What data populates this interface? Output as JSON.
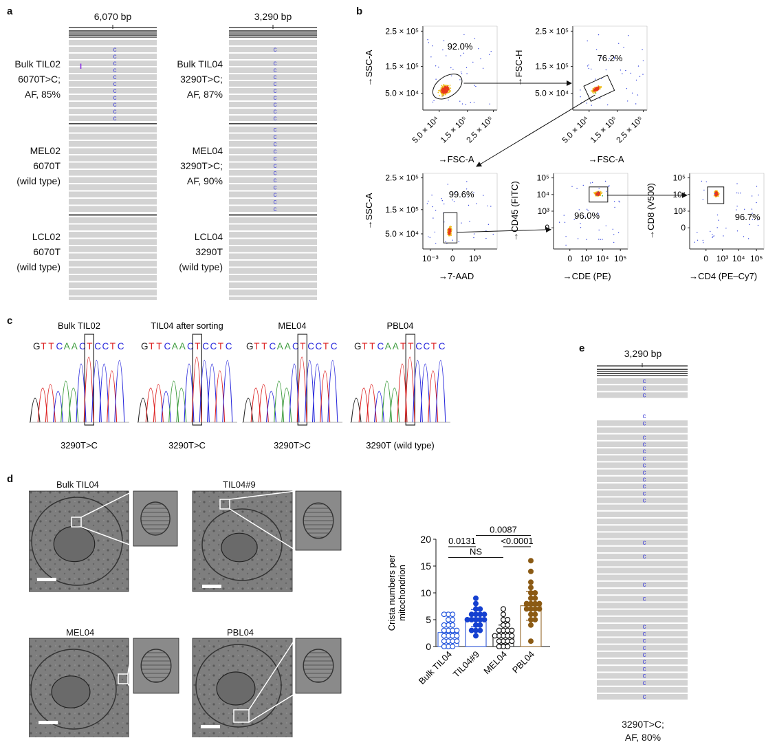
{
  "panel_letters": {
    "a": "a",
    "b": "b",
    "c": "c",
    "d": "d",
    "e": "e"
  },
  "panel_a": {
    "tracks": [
      {
        "position": "6,070 bp",
        "samples": [
          {
            "lines": [
              "Bulk TIL02",
              "6070T>C;",
              "AF, 85%"
            ]
          },
          {
            "lines": [
              "MEL02",
              "6070T",
              "(wild type)"
            ]
          },
          {
            "lines": [
              "LCL02",
              "6070T",
              "(wild type)"
            ]
          }
        ]
      },
      {
        "position": "3,290 bp",
        "samples": [
          {
            "lines": [
              "Bulk TIL04",
              "3290T>C;",
              "AF, 87%"
            ]
          },
          {
            "lines": [
              "MEL04",
              "3290T>C;",
              "AF, 90%"
            ]
          },
          {
            "lines": [
              "LCL04",
              "3290T",
              "(wild type)"
            ]
          }
        ]
      }
    ],
    "base_letter": "C",
    "insertion_mark": "I",
    "colors": {
      "read": "#d3d3d3",
      "variant": "#4a4ad8",
      "insertion": "#8a2be2"
    }
  },
  "panel_b": {
    "plots": [
      {
        "percent": "92.0%",
        "x_label": "→FSC-A",
        "y_label": "→SSC-A",
        "y_ticks": [
          "2.5 × 10⁵",
          "1.5 × 10⁵",
          "5.0 × 10⁴"
        ],
        "x_ticks": [
          "5.0 × 10⁴",
          "1.5 × 10⁵",
          "2.5 × 10⁵"
        ]
      },
      {
        "percent": "76.2%",
        "x_label": "→FSC-A",
        "y_label": "→FSC-H",
        "y_ticks": [
          "2.5 × 10⁵",
          "1.5 × 10⁵",
          "5.0 × 10⁴"
        ],
        "x_ticks": [
          "5.0 × 10⁴",
          "1.5 × 10⁵",
          "2.5 × 10⁵"
        ]
      },
      {
        "percent": "99.6%",
        "x_label": "→7-AAD",
        "y_label": "→SSC-A",
        "y_ticks": [
          "2.5 × 10⁵",
          "1.5 × 10⁵",
          "5.0 × 10⁴"
        ],
        "x_ticks": [
          "10⁻³",
          "0",
          "10³"
        ]
      },
      {
        "percent": "96.0%",
        "x_label": "→CDE (PE)",
        "y_label": "→CD45 (FITC)",
        "y_ticks": [
          "10⁵",
          "10⁴",
          "10³",
          "0"
        ],
        "x_ticks": [
          "0",
          "10³",
          "10⁴",
          "10⁵"
        ]
      },
      {
        "percent": "96.7%",
        "x_label": "→CD4 (PE–Cy7)",
        "y_label": "→CD8 (V500)",
        "y_ticks": [
          "10⁵",
          "10⁴",
          "10³",
          "0"
        ],
        "x_ticks": [
          "0",
          "10³",
          "10⁴",
          "10⁵"
        ]
      }
    ]
  },
  "panel_c": {
    "traces": [
      {
        "title": "Bulk TIL02",
        "seq": "GTTCAACTCCTC",
        "label": "3290T>C"
      },
      {
        "title": "TIL04 after sorting",
        "seq": "GTTCAACTCCTC",
        "label": "3290T>C"
      },
      {
        "title": "MEL04",
        "seq": "GTTCAACTCCTC",
        "label": "3290T>C"
      },
      {
        "title": "PBL04",
        "seq": "GTTCAATTCCTC",
        "label": "3290T (wild type)"
      }
    ],
    "base_colors": {
      "A": "#3a9a3a",
      "C": "#2a2adc",
      "G": "#222222",
      "T": "#dd2222"
    }
  },
  "panel_d": {
    "images": [
      {
        "title": "Bulk TIL04"
      },
      {
        "title": "TIL04#9"
      },
      {
        "title": "MEL04"
      },
      {
        "title": "PBL04"
      }
    ],
    "comparisons": [
      "0.0131",
      "0.0087",
      "<0.0001",
      "NS"
    ]
  },
  "chart_data": {
    "type": "bar",
    "ylabel": "Crista numbers per mitochondrion",
    "ylim": [
      0,
      20
    ],
    "yticks": [
      0,
      5,
      10,
      15,
      20
    ],
    "categories": [
      "Bulk TIL04",
      "TIL04#9",
      "MEL04",
      "PBL04"
    ],
    "values": [
      2.6,
      5.3,
      2.2,
      7.6
    ],
    "sd": [
      1.7,
      1.6,
      1.8,
      2.7
    ],
    "colors": [
      "#2255dd",
      "#1540d0",
      "#111111",
      "#8b5a14"
    ],
    "points": [
      [
        0,
        0,
        0,
        1,
        1,
        1,
        1,
        2,
        2,
        2,
        2,
        3,
        3,
        3,
        3,
        4,
        4,
        4,
        5,
        5,
        6,
        6,
        6
      ],
      [
        2,
        3,
        3,
        3,
        4,
        4,
        5,
        5,
        5,
        5,
        5,
        6,
        6,
        6,
        6,
        7,
        7,
        8,
        9
      ],
      [
        0,
        0,
        0,
        1,
        1,
        1,
        1,
        2,
        2,
        2,
        2,
        2,
        3,
        3,
        3,
        3,
        4,
        4,
        5,
        5,
        6,
        7
      ],
      [
        1,
        4,
        5,
        5,
        6,
        6,
        7,
        7,
        7,
        7,
        8,
        8,
        8,
        8,
        9,
        9,
        10,
        10,
        11,
        12,
        14,
        16
      ]
    ],
    "fill": [
      false,
      true,
      false,
      true
    ]
  },
  "panel_e": {
    "position": "3,290 bp",
    "caption": [
      "3290T>C;",
      "AF, 80%"
    ],
    "base_letter": "C"
  }
}
